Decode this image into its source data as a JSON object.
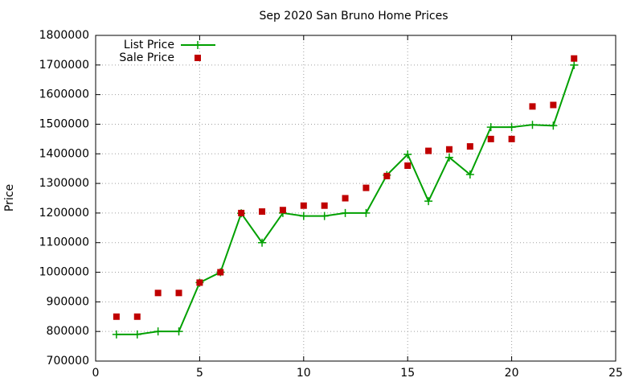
{
  "chart_data": {
    "type": "line",
    "title": "Sep 2020 San Bruno Home Prices",
    "y_label": "Price",
    "x": [
      1,
      2,
      3,
      4,
      5,
      6,
      7,
      8,
      9,
      10,
      11,
      12,
      13,
      14,
      15,
      16,
      17,
      18,
      19,
      20,
      21,
      22,
      23
    ],
    "series": [
      {
        "name": "List Price",
        "color": "#00a000",
        "mode": "linespoints",
        "values": [
          790000,
          790000,
          800000,
          800000,
          965000,
          1000000,
          1199000,
          1100000,
          1200000,
          1190000,
          1190000,
          1200000,
          1200000,
          1328000,
          1398000,
          1240000,
          1388000,
          1330000,
          1490000,
          1490000,
          1498000,
          1495000,
          1700000
        ]
      },
      {
        "name": "Sale Price",
        "color": "#c00000",
        "mode": "points",
        "values": [
          850000,
          850000,
          930000,
          930000,
          965000,
          1000000,
          1200000,
          1205000,
          1210000,
          1225000,
          1225000,
          1250000,
          1285000,
          1325000,
          1360000,
          1410000,
          1415000,
          1425000,
          1450000,
          1450000,
          1560000,
          1565000,
          1722000
        ]
      }
    ],
    "xlim": [
      0,
      25
    ],
    "xticks": [
      0,
      5,
      10,
      15,
      20,
      25
    ],
    "ylim": [
      700000,
      1800000
    ],
    "yticks": [
      700000,
      800000,
      900000,
      1000000,
      1100000,
      1200000,
      1300000,
      1400000,
      1500000,
      1600000,
      1700000,
      1800000
    ],
    "grid": true,
    "legend": "top-left"
  }
}
